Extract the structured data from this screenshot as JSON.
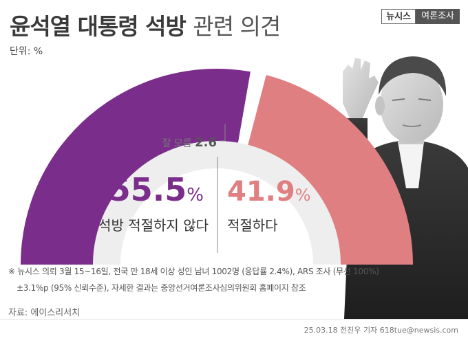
{
  "title_bold": "윤석열 대통령 석방",
  "title_light": "관련 의견",
  "brand": {
    "left": "뉴시스",
    "right": "여론조사"
  },
  "unit": "단위: %",
  "colors": {
    "purple": "#7b2d8b",
    "pink": "#e07f82",
    "gray": "#ffffff",
    "inner": "#eeeeee"
  },
  "chart_data": {
    "type": "pie",
    "subtype": "half-donut",
    "categories": [
      "석방 적절하지 않다",
      "잘 모름",
      "적절하다"
    ],
    "values": [
      55.5,
      2.6,
      41.9
    ],
    "value_labels": [
      "55.5",
      "2.6",
      "41.9"
    ],
    "unit": "%"
  },
  "notes": {
    "line1": "※ 뉴시스 의뢰 3월 15~16일, 전국 만 18세 이상 성인 남녀 1002명 (응답률 2.4%), ARS 조사 (무선 100%)",
    "line2": "±3.1%p (95% 신뢰수준), 자세한 결과는 중앙선거여론조사심의위원회 홈페이지 참조"
  },
  "source": "자료: 에이스리서치",
  "credit": "25.03.18 전진우 기자 618tue@newsis.com"
}
